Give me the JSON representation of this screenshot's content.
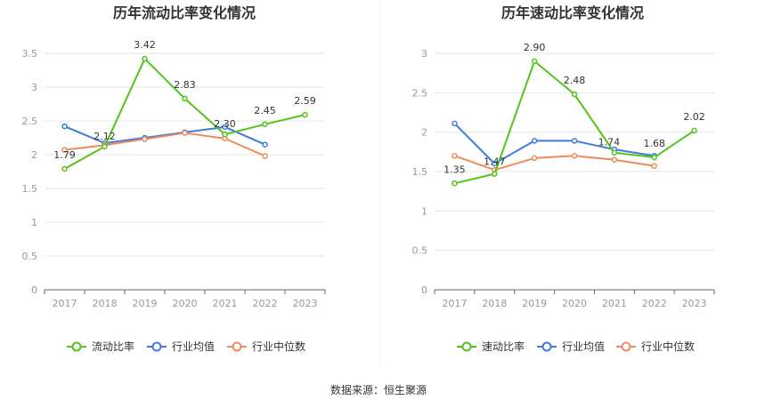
{
  "source": "数据来源：恒生聚源",
  "colors": {
    "series1": "#52c41a",
    "series2": "#3f7be0",
    "series3": "#f08a5d",
    "grid": "#e6e6e6",
    "axis": "#666666"
  },
  "chart_data": [
    {
      "type": "line",
      "title": "历年流动比率变化情况",
      "categories": [
        "2017",
        "2018",
        "2019",
        "2020",
        "2021",
        "2022",
        "2023"
      ],
      "ylim": [
        0,
        3.5
      ],
      "yticks": [
        "0",
        "0.5",
        "1",
        "1.5",
        "2",
        "2.5",
        "3",
        "3.5"
      ],
      "series": [
        {
          "name": "流动比率",
          "values": [
            1.79,
            2.12,
            3.42,
            2.83,
            2.3,
            2.45,
            2.59
          ],
          "labels": [
            "1.79",
            "2.12",
            "3.42",
            "2.83",
            "2.30",
            "2.45",
            "2.59"
          ]
        },
        {
          "name": "行业均值",
          "values": [
            2.42,
            2.17,
            2.25,
            2.33,
            2.41,
            2.15,
            null
          ]
        },
        {
          "name": "行业中位数",
          "values": [
            2.07,
            2.14,
            2.23,
            2.32,
            2.24,
            1.98,
            null
          ]
        }
      ],
      "legend": [
        "流动比率",
        "行业均值",
        "行业中位数"
      ]
    },
    {
      "type": "line",
      "title": "历年速动比率变化情况",
      "categories": [
        "2017",
        "2018",
        "2019",
        "2020",
        "2021",
        "2022",
        "2023"
      ],
      "ylim": [
        0,
        3
      ],
      "yticks": [
        "0",
        "0.5",
        "1",
        "1.5",
        "2",
        "2.5",
        "3"
      ],
      "series": [
        {
          "name": "速动比率",
          "values": [
            1.35,
            1.47,
            2.9,
            2.48,
            1.74,
            1.68,
            2.02
          ],
          "labels": [
            "1.35",
            "1.47",
            "2.90",
            "2.48",
            "1.74",
            "1.68",
            "2.02"
          ]
        },
        {
          "name": "行业均值",
          "values": [
            2.11,
            1.6,
            1.89,
            1.89,
            1.78,
            1.7,
            null
          ]
        },
        {
          "name": "行业中位数",
          "values": [
            1.7,
            1.52,
            1.67,
            1.7,
            1.65,
            1.57,
            null
          ]
        }
      ],
      "legend": [
        "速动比率",
        "行业均值",
        "行业中位数"
      ]
    }
  ]
}
